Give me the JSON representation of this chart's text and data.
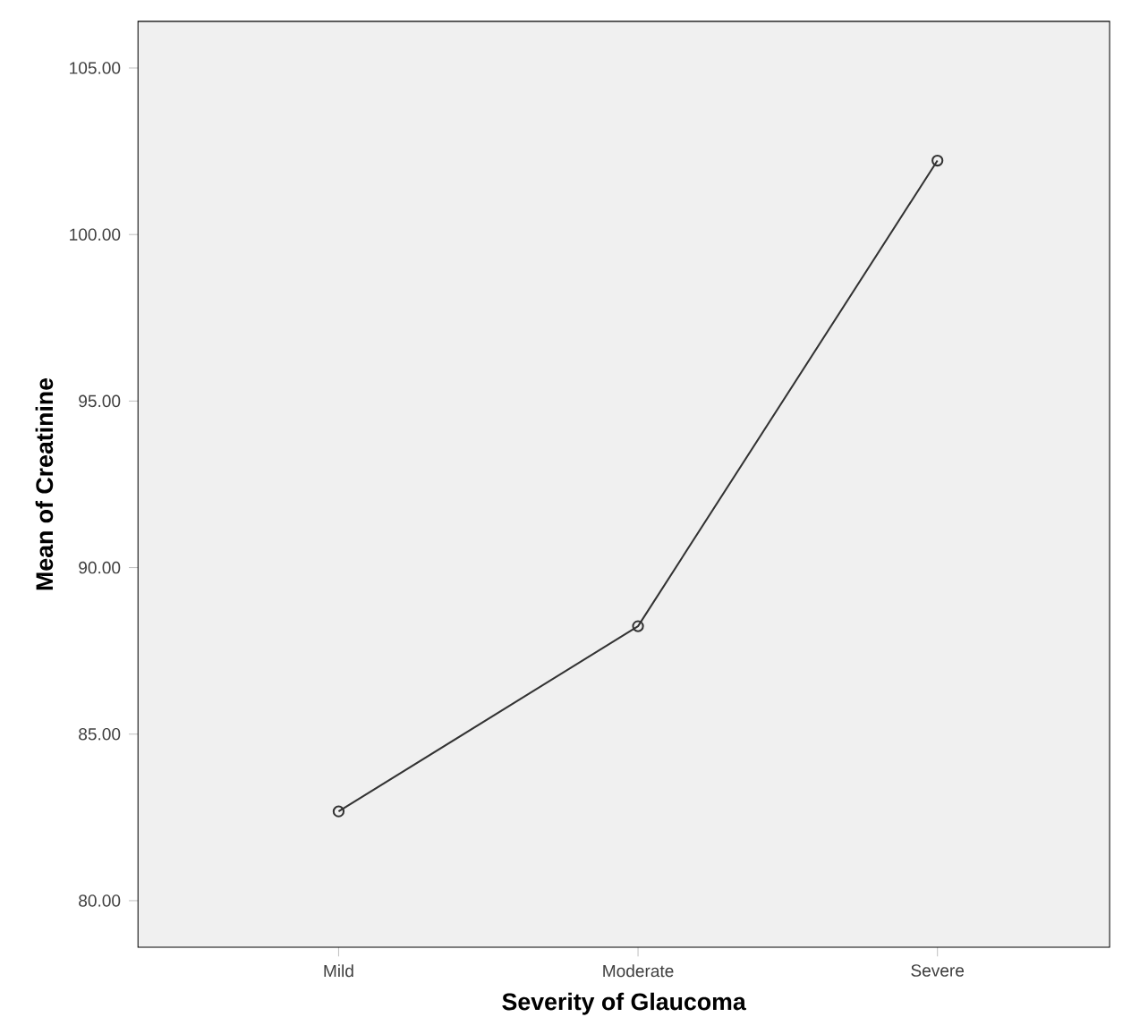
{
  "chart_data": {
    "type": "line",
    "xlabel": "Severity of Glaucoma",
    "ylabel": "Mean of Creatinine",
    "categories": [
      "Mild",
      "Moderate",
      "Severe"
    ],
    "series": [
      {
        "color": "#333333",
        "values": [
          82.68,
          88.24,
          102.22
        ]
      }
    ],
    "ylim": [
      78.6,
      106.4
    ],
    "yticks": [
      {
        "value": 80,
        "label": "80.00"
      },
      {
        "value": 85,
        "label": "85.00"
      },
      {
        "value": 90,
        "label": "90.00"
      },
      {
        "value": 95,
        "label": "95.00"
      },
      {
        "value": 100,
        "label": "100.00"
      },
      {
        "value": 105,
        "label": "105.00"
      }
    ],
    "marker": "circle",
    "line_style": "solid"
  }
}
